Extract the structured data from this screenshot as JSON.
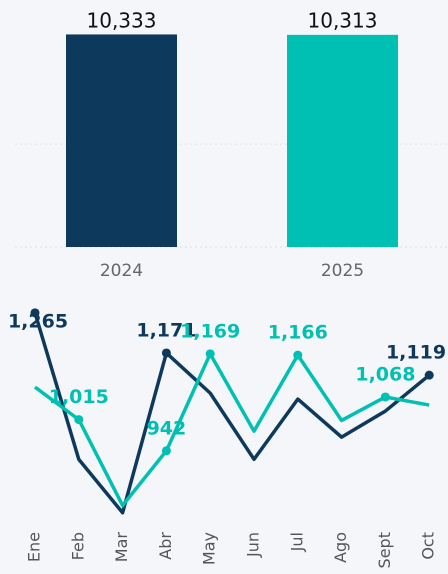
{
  "chart_data": [
    {
      "type": "bar",
      "categories": [
        "2024",
        "2025"
      ],
      "values": [
        10333,
        10313
      ],
      "value_labels": [
        "10,333",
        "10,313"
      ],
      "colors": [
        "#0d3a5c",
        "#00bfb3"
      ],
      "ylim": [
        0,
        10500
      ],
      "yticks": [
        0,
        5000
      ],
      "grid": true
    },
    {
      "type": "line",
      "categories": [
        "Ene",
        "Feb",
        "Mar",
        "Abr",
        "May",
        "Jun",
        "Jul",
        "Ago",
        "Sept",
        "Oct"
      ],
      "series": [
        {
          "color": "#0d3a5c",
          "values": [
            1265,
            922,
            797,
            1171,
            1077,
            922,
            1063,
            974,
            1035,
            1119
          ],
          "value_labels": [
            "1,265",
            null,
            null,
            "1,171",
            null,
            null,
            null,
            null,
            null,
            "1,119"
          ]
        },
        {
          "color": "#00bfb3",
          "values": [
            1091,
            1015,
            814,
            942,
            1169,
            988,
            1166,
            1013,
            1068,
            1049
          ],
          "value_labels": [
            null,
            "1,015",
            null,
            "942",
            "1,169",
            null,
            "1,166",
            null,
            "1,068",
            null
          ]
        }
      ],
      "ylim": [
        780,
        1295
      ]
    }
  ]
}
